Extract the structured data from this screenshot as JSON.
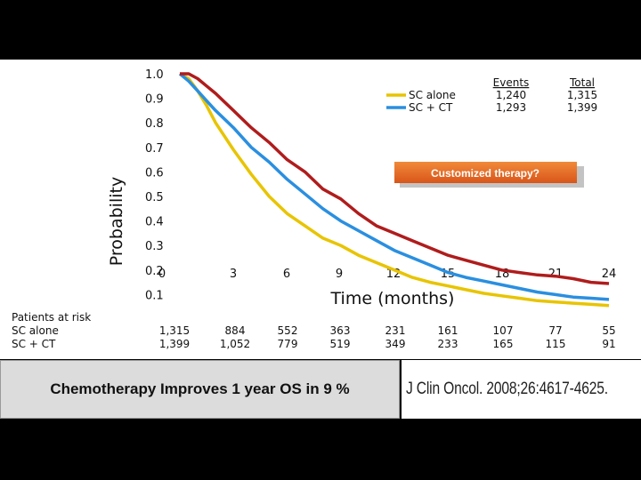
{
  "caption": "Chemotherapy Improves 1 year OS in 9 %",
  "citation": "J Clin Oncol. 2008;26:4617-4625.",
  "callout": "Customized therapy?",
  "chart_data": {
    "type": "line",
    "xlabel": "Time (months)",
    "ylabel": "Probability",
    "xlim": [
      0,
      24
    ],
    "ylim": [
      0,
      1.0
    ],
    "x_ticks": [
      "0",
      "3",
      "6",
      "9",
      "12",
      "15",
      "18",
      "21",
      "24"
    ],
    "y_ticks": [
      "1.0",
      "0.9",
      "0.8",
      "0.7",
      "0.6",
      "0.5",
      "0.4",
      "0.3",
      "0.2",
      "0.1"
    ],
    "legend": {
      "header_events": "Events",
      "header_total": "Total",
      "entries": [
        {
          "name": "SC alone",
          "events": "1,240",
          "total": "1,315"
        },
        {
          "name": "SC + CT",
          "events": "1,293",
          "total": "1,399"
        }
      ],
      "position": "top-right"
    },
    "series": [
      {
        "name": "SC alone",
        "color": "#e8c400",
        "x": [
          0,
          0.5,
          1,
          1.5,
          2,
          3,
          4,
          5,
          6,
          7,
          8,
          9,
          10,
          11,
          12,
          13,
          14,
          15,
          16,
          17,
          18,
          19,
          20,
          21,
          22,
          23,
          24
        ],
        "y": [
          1.0,
          0.98,
          0.93,
          0.87,
          0.8,
          0.69,
          0.59,
          0.5,
          0.43,
          0.38,
          0.33,
          0.3,
          0.26,
          0.23,
          0.2,
          0.17,
          0.15,
          0.135,
          0.12,
          0.105,
          0.095,
          0.085,
          0.075,
          0.07,
          0.065,
          0.06,
          0.055
        ]
      },
      {
        "name": "SC + CT",
        "color": "#2a8fe0",
        "x": [
          0,
          0.5,
          1,
          1.5,
          2,
          3,
          4,
          5,
          6,
          7,
          8,
          9,
          10,
          11,
          12,
          13,
          14,
          15,
          16,
          17,
          18,
          19,
          20,
          21,
          22,
          23,
          24
        ],
        "y": [
          1.0,
          0.97,
          0.93,
          0.89,
          0.85,
          0.78,
          0.7,
          0.64,
          0.57,
          0.51,
          0.45,
          0.4,
          0.36,
          0.32,
          0.28,
          0.25,
          0.22,
          0.19,
          0.17,
          0.155,
          0.14,
          0.125,
          0.11,
          0.1,
          0.09,
          0.085,
          0.08
        ]
      },
      {
        "name": "",
        "color": "#b01c1c",
        "x": [
          0,
          0.5,
          1,
          1.5,
          2,
          3,
          4,
          5,
          6,
          7,
          8,
          9,
          10,
          11,
          12,
          13,
          14,
          15,
          16,
          17,
          18,
          19,
          20,
          21,
          22,
          23,
          24
        ],
        "y": [
          1.0,
          1.0,
          0.98,
          0.95,
          0.92,
          0.85,
          0.78,
          0.72,
          0.65,
          0.6,
          0.53,
          0.49,
          0.43,
          0.38,
          0.35,
          0.32,
          0.29,
          0.26,
          0.24,
          0.22,
          0.2,
          0.19,
          0.18,
          0.175,
          0.165,
          0.15,
          0.145
        ]
      }
    ],
    "risk_table": {
      "title": "Patients at risk",
      "rows": [
        {
          "label": "SC alone",
          "values": [
            "1,315",
            "884",
            "552",
            "363",
            "231",
            "161",
            "107",
            "77",
            "55"
          ]
        },
        {
          "label": "SC + CT",
          "values": [
            "1,399",
            "1,052",
            "779",
            "519",
            "349",
            "233",
            "165",
            "115",
            "91"
          ]
        }
      ]
    }
  }
}
